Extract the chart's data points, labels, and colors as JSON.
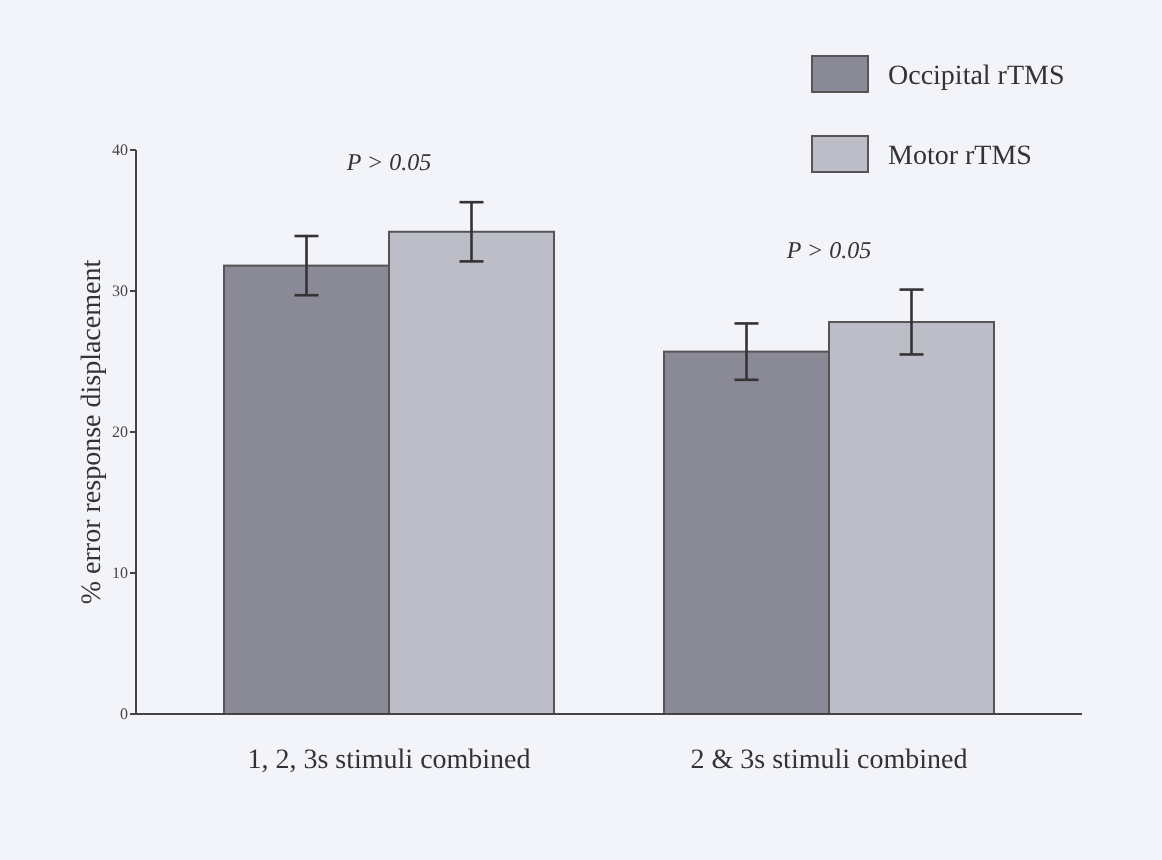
{
  "chart_data": {
    "type": "bar",
    "ylabel": "% error response displacement",
    "categories": [
      "1, 2, 3s stimuli combined",
      "2 & 3s stimuli combined"
    ],
    "series": [
      {
        "name": "Occipital rTMS",
        "color": "#8a8a96",
        "values": [
          31.8,
          25.7
        ],
        "errors": [
          2.1,
          2.0
        ]
      },
      {
        "name": "Motor rTMS",
        "color": "#bcbdc6",
        "values": [
          34.2,
          27.8
        ],
        "errors": [
          2.1,
          2.3
        ]
      }
    ],
    "ylim": [
      0,
      40
    ],
    "yticks": [
      0,
      10,
      20,
      30,
      40
    ],
    "grid": false,
    "legend": "top right",
    "annotations": [
      "P > 0.05",
      "P > 0.05"
    ]
  }
}
